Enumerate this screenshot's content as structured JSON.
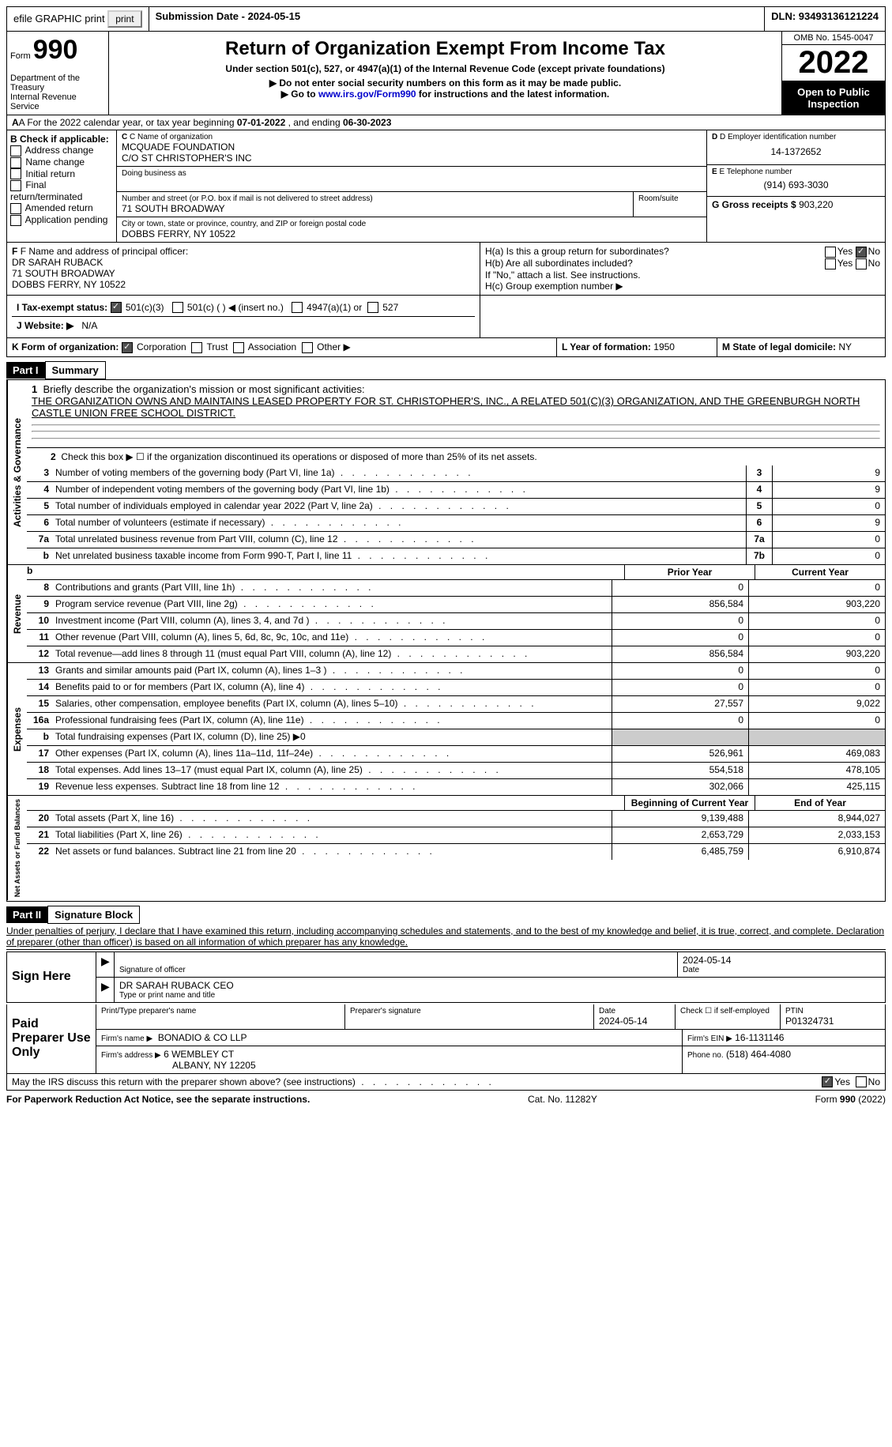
{
  "topbar": {
    "efile": "efile GRAPHIC print",
    "submission": "Submission Date - 2024-05-15",
    "dln": "DLN: 93493136121224"
  },
  "header": {
    "form_label": "Form",
    "form_number": "990",
    "title": "Return of Organization Exempt From Income Tax",
    "subtitle": "Under section 501(c), 527, or 4947(a)(1) of the Internal Revenue Code (except private foundations)",
    "note1": "▶ Do not enter social security numbers on this form as it may be made public.",
    "note2_prefix": "▶ Go to ",
    "note2_link": "www.irs.gov/Form990",
    "note2_suffix": " for instructions and the latest information.",
    "dept": "Department of the Treasury",
    "irs": "Internal Revenue Service",
    "omb": "OMB No. 1545-0047",
    "year": "2022",
    "inspection": "Open to Public Inspection"
  },
  "section_a": {
    "prefix": "A For the 2022 calendar year, or tax year beginning ",
    "begin": "07-01-2022",
    "mid": " , and ending ",
    "end": "06-30-2023"
  },
  "col_b": {
    "title": "B Check if applicable:",
    "items": [
      "Address change",
      "Name change",
      "Initial return",
      "Final return/terminated",
      "Amended return",
      "Application pending"
    ]
  },
  "col_c": {
    "name_label": "C Name of organization",
    "name1": "MCQUADE FOUNDATION",
    "name2": "C/O ST CHRISTOPHER'S INC",
    "dba_label": "Doing business as",
    "street_label": "Number and street (or P.O. box if mail is not delivered to street address)",
    "room_label": "Room/suite",
    "street": "71 SOUTH BROADWAY",
    "city_label": "City or town, state or province, country, and ZIP or foreign postal code",
    "city": "DOBBS FERRY, NY  10522"
  },
  "col_d": {
    "ein_label": "D Employer identification number",
    "ein": "14-1372652",
    "phone_label": "E Telephone number",
    "phone": "(914) 693-3030",
    "receipts_label": "G Gross receipts $",
    "receipts": "903,220"
  },
  "row_f": {
    "label": "F Name and address of principal officer:",
    "name": "DR SARAH RUBACK",
    "street": "71 SOUTH BROADWAY",
    "city": "DOBBS FERRY, NY  10522"
  },
  "row_h": {
    "ha": "H(a) Is this a group return for subordinates?",
    "hb": "H(b) Are all subordinates included?",
    "hb_note": "If \"No,\" attach a list. See instructions.",
    "hc": "H(c) Group exemption number ▶",
    "yes": "Yes",
    "no": "No"
  },
  "row_i": {
    "label": "I Tax-exempt status:",
    "opt1": "501(c)(3)",
    "opt2": "501(c) (  ) ◀ (insert no.)",
    "opt3": "4947(a)(1) or",
    "opt4": "527"
  },
  "row_j": {
    "label": "J Website: ▶",
    "value": "N/A"
  },
  "row_k": {
    "label": "K Form of organization:",
    "corp": "Corporation",
    "trust": "Trust",
    "assoc": "Association",
    "other": "Other ▶",
    "l_label": "L Year of formation:",
    "l_val": "1950",
    "m_label": "M State of legal domicile:",
    "m_val": "NY"
  },
  "part1": {
    "header": "Part I",
    "title": "Summary"
  },
  "governance": {
    "label": "Activities & Governance",
    "line1_label": "Briefly describe the organization's mission or most significant activities:",
    "line1_text": "THE ORGANIZATION OWNS AND MAINTAINS LEASED PROPERTY FOR ST. CHRISTOPHER'S, INC., A RELATED 501(C)(3) ORGANIZATION, AND THE GREENBURGH NORTH CASTLE UNION FREE SCHOOL DISTRICT.",
    "line2": "Check this box ▶ ☐ if the organization discontinued its operations or disposed of more than 25% of its net assets.",
    "rows": [
      {
        "n": "3",
        "t": "Number of voting members of the governing body (Part VI, line 1a)",
        "b": "3",
        "v": "9"
      },
      {
        "n": "4",
        "t": "Number of independent voting members of the governing body (Part VI, line 1b)",
        "b": "4",
        "v": "9"
      },
      {
        "n": "5",
        "t": "Total number of individuals employed in calendar year 2022 (Part V, line 2a)",
        "b": "5",
        "v": "0"
      },
      {
        "n": "6",
        "t": "Total number of volunteers (estimate if necessary)",
        "b": "6",
        "v": "9"
      },
      {
        "n": "7a",
        "t": "Total unrelated business revenue from Part VIII, column (C), line 12",
        "b": "7a",
        "v": "0"
      },
      {
        "n": "b",
        "t": "Net unrelated business taxable income from Form 990-T, Part I, line 11",
        "b": "7b",
        "v": "0"
      }
    ]
  },
  "revenue": {
    "label": "Revenue",
    "hdr1": "Prior Year",
    "hdr2": "Current Year",
    "rows": [
      {
        "n": "8",
        "t": "Contributions and grants (Part VIII, line 1h)",
        "v1": "0",
        "v2": "0"
      },
      {
        "n": "9",
        "t": "Program service revenue (Part VIII, line 2g)",
        "v1": "856,584",
        "v2": "903,220"
      },
      {
        "n": "10",
        "t": "Investment income (Part VIII, column (A), lines 3, 4, and 7d )",
        "v1": "0",
        "v2": "0"
      },
      {
        "n": "11",
        "t": "Other revenue (Part VIII, column (A), lines 5, 6d, 8c, 9c, 10c, and 11e)",
        "v1": "0",
        "v2": "0"
      },
      {
        "n": "12",
        "t": "Total revenue—add lines 8 through 11 (must equal Part VIII, column (A), line 12)",
        "v1": "856,584",
        "v2": "903,220"
      }
    ]
  },
  "expenses": {
    "label": "Expenses",
    "rows": [
      {
        "n": "13",
        "t": "Grants and similar amounts paid (Part IX, column (A), lines 1–3 )",
        "v1": "0",
        "v2": "0"
      },
      {
        "n": "14",
        "t": "Benefits paid to or for members (Part IX, column (A), line 4)",
        "v1": "0",
        "v2": "0"
      },
      {
        "n": "15",
        "t": "Salaries, other compensation, employee benefits (Part IX, column (A), lines 5–10)",
        "v1": "27,557",
        "v2": "9,022"
      },
      {
        "n": "16a",
        "t": "Professional fundraising fees (Part IX, column (A), line 11e)",
        "v1": "0",
        "v2": "0"
      },
      {
        "n": "b",
        "t": "Total fundraising expenses (Part IX, column (D), line 25) ▶0",
        "v1": "",
        "v2": "",
        "shaded": true
      },
      {
        "n": "17",
        "t": "Other expenses (Part IX, column (A), lines 11a–11d, 11f–24e)",
        "v1": "526,961",
        "v2": "469,083"
      },
      {
        "n": "18",
        "t": "Total expenses. Add lines 13–17 (must equal Part IX, column (A), line 25)",
        "v1": "554,518",
        "v2": "478,105"
      },
      {
        "n": "19",
        "t": "Revenue less expenses. Subtract line 18 from line 12",
        "v1": "302,066",
        "v2": "425,115"
      }
    ]
  },
  "netassets": {
    "label": "Net Assets or Fund Balances",
    "hdr1": "Beginning of Current Year",
    "hdr2": "End of Year",
    "rows": [
      {
        "n": "20",
        "t": "Total assets (Part X, line 16)",
        "v1": "9,139,488",
        "v2": "8,944,027"
      },
      {
        "n": "21",
        "t": "Total liabilities (Part X, line 26)",
        "v1": "2,653,729",
        "v2": "2,033,153"
      },
      {
        "n": "22",
        "t": "Net assets or fund balances. Subtract line 21 from line 20",
        "v1": "6,485,759",
        "v2": "6,910,874"
      }
    ]
  },
  "part2": {
    "header": "Part II",
    "title": "Signature Block",
    "declaration": "Under penalties of perjury, I declare that I have examined this return, including accompanying schedules and statements, and to the best of my knowledge and belief, it is true, correct, and complete. Declaration of preparer (other than officer) is based on all information of which preparer has any knowledge."
  },
  "sign": {
    "label": "Sign Here",
    "sig_label": "Signature of officer",
    "date": "2024-05-14",
    "date_label": "Date",
    "name": "DR SARAH RUBACK CEO",
    "name_label": "Type or print name and title"
  },
  "preparer": {
    "label": "Paid Preparer Use Only",
    "print_label": "Print/Type preparer's name",
    "sig_label": "Preparer's signature",
    "date_label": "Date",
    "date": "2024-05-14",
    "check_label": "Check ☐ if self-employed",
    "ptin_label": "PTIN",
    "ptin": "P01324731",
    "firm_name_label": "Firm's name   ▶",
    "firm_name": "BONADIO & CO LLP",
    "firm_ein_label": "Firm's EIN ▶",
    "firm_ein": "16-1131146",
    "firm_addr_label": "Firm's address ▶",
    "firm_addr1": "6 WEMBLEY CT",
    "firm_addr2": "ALBANY, NY  12205",
    "phone_label": "Phone no.",
    "phone": "(518) 464-4080"
  },
  "discuss": {
    "text": "May the IRS discuss this return with the preparer shown above? (see instructions)",
    "yes": "Yes",
    "no": "No"
  },
  "footer": {
    "left": "For Paperwork Reduction Act Notice, see the separate instructions.",
    "center": "Cat. No. 11282Y",
    "right": "Form 990 (2022)"
  }
}
